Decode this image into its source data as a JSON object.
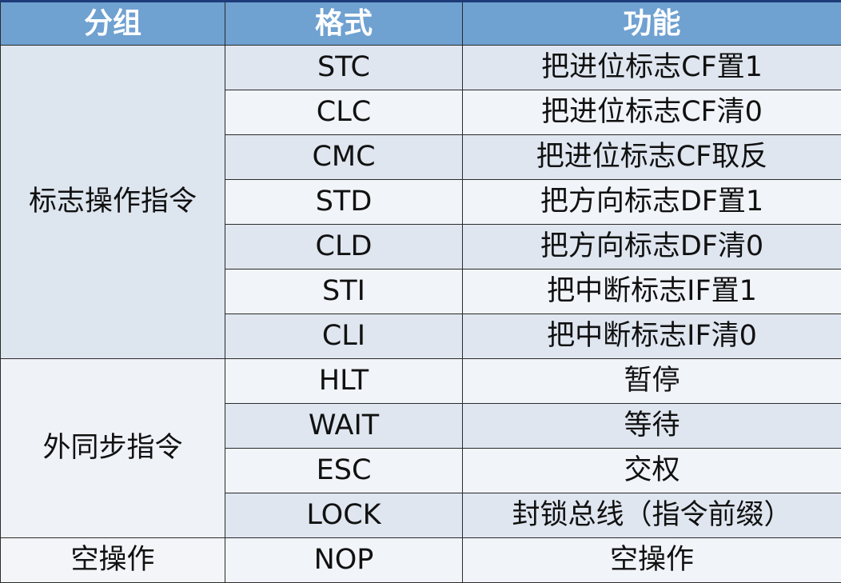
{
  "headers": [
    "分组",
    "格式",
    "功能"
  ],
  "groups": [
    {
      "name": "标志操作指令",
      "rows": [
        {
          "format": "STC",
          "function": "把进位标志CF置1"
        },
        {
          "format": "CLC",
          "function": "把进位标志CF清0"
        },
        {
          "format": "CMC",
          "function": "把进位标志CF取反"
        },
        {
          "format": "STD",
          "function": "把方向标志DF置1"
        },
        {
          "format": "CLD",
          "function": "把方向标志DF清0"
        },
        {
          "format": "STI",
          "function": "把中断标志IF置1"
        },
        {
          "format": "CLI",
          "function": "把中断标志IF清0"
        }
      ]
    },
    {
      "name": "外同步指令",
      "rows": [
        {
          "format": "HLT",
          "function": "暂停"
        },
        {
          "format": "WAIT",
          "function": "等待"
        },
        {
          "format": "ESC",
          "function": "交权"
        },
        {
          "format": "LOCK",
          "function": "封锁总线（指令前缀）"
        }
      ]
    },
    {
      "name": "空操作",
      "rows": [
        {
          "format": "NOP",
          "function": "空操作"
        }
      ]
    }
  ],
  "colors": {
    "header_bg": "#6fa1d1",
    "header_border": "#1d3c78",
    "row_alt": "#dfe6f0",
    "row_plain": "#f1f4f9"
  }
}
